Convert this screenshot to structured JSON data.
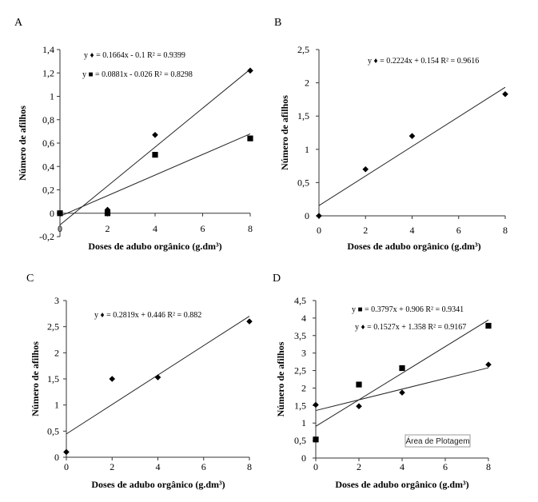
{
  "chart_data": [
    {
      "panel": "A",
      "type": "scatter",
      "xlabel": "Doses de adubo  orgânico  (g.dm³)",
      "ylabel": "Número de afilhos",
      "xlim": [
        0,
        8
      ],
      "ylim": [
        -0.2,
        1.4
      ],
      "xticks": [
        0,
        2,
        4,
        6,
        8
      ],
      "yticks": [
        -0.2,
        0,
        0.2,
        0.4,
        0.6,
        0.8,
        1,
        1.2,
        1.4
      ],
      "xtick_labels": [
        "0",
        "2",
        "4",
        "6",
        "8"
      ],
      "ytick_labels": [
        "-0,2",
        "0",
        "0,2",
        "0,4",
        "0,6",
        "0,8",
        "1",
        "1,2",
        "1,4"
      ],
      "series": [
        {
          "marker": "diamond",
          "x": [
            0,
            2,
            4,
            8
          ],
          "y": [
            0.0,
            0.03,
            0.67,
            1.22
          ],
          "trend": {
            "slope": 0.1664,
            "intercept": -0.1
          },
          "equation": "y ♦ = 0.1664x  - 0.1  R² = 0.9399"
        },
        {
          "marker": "square",
          "x": [
            0,
            2,
            4,
            8
          ],
          "y": [
            0.0,
            0.0,
            0.5,
            0.64
          ],
          "trend": {
            "slope": 0.0881,
            "intercept": -0.026
          },
          "equation": "y ■ = 0.0881x  - 0.026  R² = 0.8298"
        }
      ]
    },
    {
      "panel": "B",
      "type": "scatter",
      "xlabel": "Doses de adubo  orgânico  (g.dm³)",
      "ylabel": "Número  de afilhos",
      "xlim": [
        0,
        8
      ],
      "ylim": [
        0,
        2.5
      ],
      "xticks": [
        0,
        2,
        4,
        6,
        8
      ],
      "yticks": [
        0,
        0.5,
        1,
        1.5,
        2,
        2.5
      ],
      "xtick_labels": [
        "0",
        "2",
        "4",
        "6",
        "8"
      ],
      "ytick_labels": [
        "0",
        "0,5",
        "1",
        "1,5",
        "2",
        "2,5"
      ],
      "series": [
        {
          "marker": "diamond",
          "x": [
            0,
            2,
            4,
            8
          ],
          "y": [
            0.0,
            0.7,
            1.2,
            1.83
          ],
          "trend": {
            "slope": 0.2224,
            "intercept": 0.154
          },
          "equation": "y ♦ = 0.2224x  + 0.154  R² = 0.9616"
        }
      ]
    },
    {
      "panel": "C",
      "type": "scatter",
      "xlabel": "Doses de adubo  orgânico  (g.dm³)",
      "ylabel": "Número  de afilhos",
      "xlim": [
        0,
        8
      ],
      "ylim": [
        0,
        3
      ],
      "xticks": [
        0,
        2,
        4,
        6,
        8
      ],
      "yticks": [
        0,
        0.5,
        1,
        1.5,
        2,
        2.5,
        3
      ],
      "xtick_labels": [
        "0",
        "2",
        "4",
        "6",
        "8"
      ],
      "ytick_labels": [
        "0",
        "0,5",
        "1",
        "1,5",
        "2",
        "2,5",
        "3"
      ],
      "series": [
        {
          "marker": "diamond",
          "x": [
            0,
            2,
            4,
            8
          ],
          "y": [
            0.1,
            1.5,
            1.53,
            2.6
          ],
          "trend": {
            "slope": 0.2819,
            "intercept": 0.446
          },
          "equation": "y ♦ = 0.2819x  + 0.446  R² = 0.882"
        }
      ]
    },
    {
      "panel": "D",
      "type": "scatter",
      "xlabel": "Doses de adubo  orgânico  (g.dm³)",
      "ylabel": "Número  de afilhos",
      "xlim": [
        0,
        8
      ],
      "ylim": [
        0,
        4.5
      ],
      "xticks": [
        0,
        2,
        4,
        6,
        8
      ],
      "yticks": [
        0,
        0.5,
        1,
        1.5,
        2,
        2.5,
        3,
        3.5,
        4,
        4.5
      ],
      "xtick_labels": [
        "0",
        "2",
        "4",
        "6",
        "8"
      ],
      "ytick_labels": [
        "0",
        "0,5",
        "1",
        "1,5",
        "2",
        "2,5",
        "3",
        "3,5",
        "4",
        "4,5"
      ],
      "annotation": "Área de Plotagem",
      "series": [
        {
          "marker": "square",
          "x": [
            0,
            2,
            4,
            8
          ],
          "y": [
            0.53,
            2.1,
            2.57,
            3.78
          ],
          "trend": {
            "slope": 0.3797,
            "intercept": 0.906
          },
          "equation": "y ■ = 0.3797x  + 0.906  R² = 0.9341"
        },
        {
          "marker": "diamond",
          "x": [
            0,
            2,
            4,
            8
          ],
          "y": [
            1.52,
            1.48,
            1.87,
            2.67
          ],
          "trend": {
            "slope": 0.1527,
            "intercept": 1.358
          },
          "equation": "y ♦ = 0.1527x  + 1.358  R² = 0.9167"
        }
      ]
    }
  ]
}
